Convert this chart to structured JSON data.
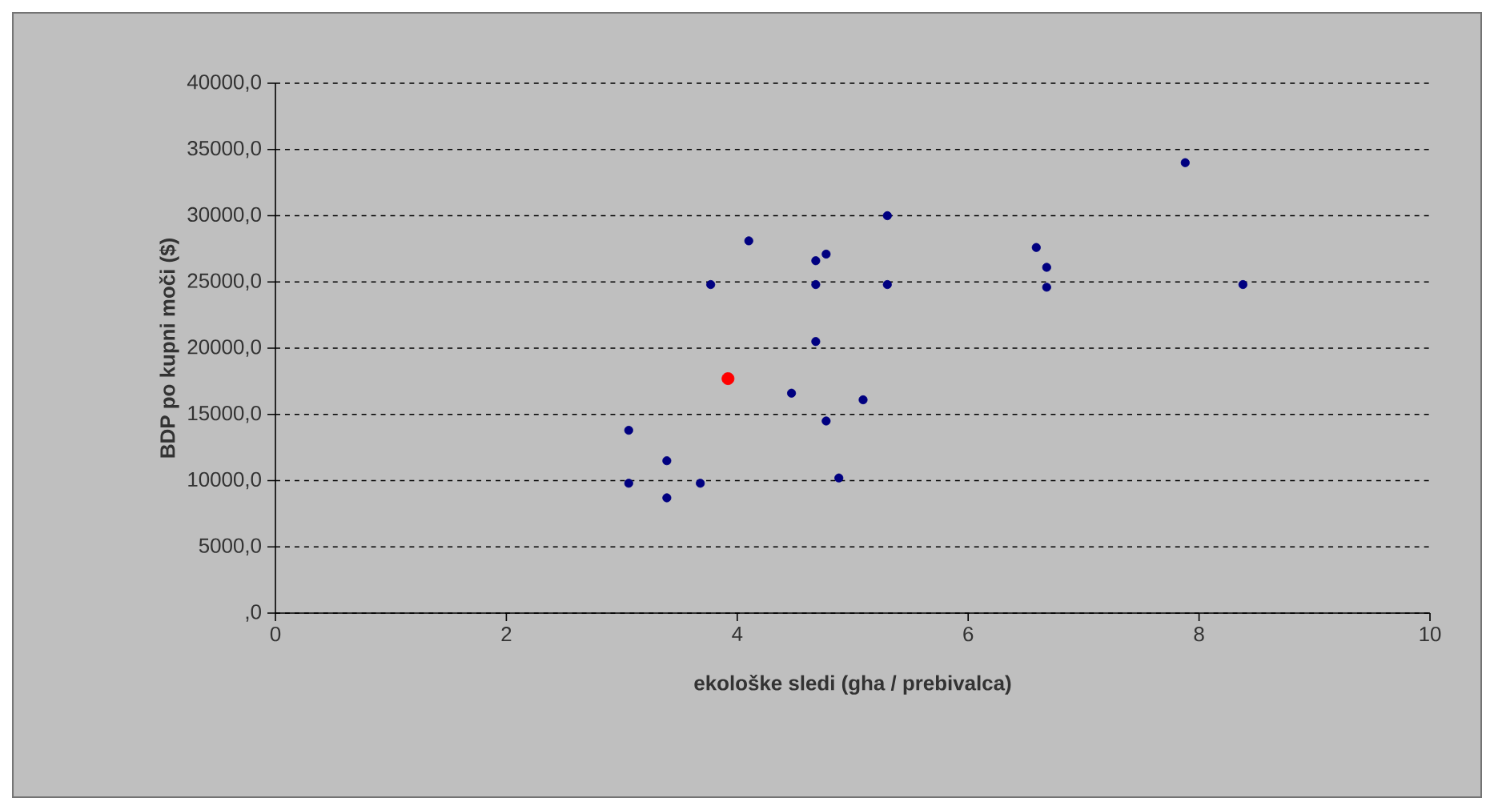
{
  "chart_data": {
    "type": "scatter",
    "xlabel": "ekološke sledi (gha / prebivalca)",
    "ylabel": "BDP po kupni moči ($)",
    "xlim": [
      0,
      10
    ],
    "xticks": [
      0,
      2,
      4,
      6,
      8,
      10
    ],
    "ylim": [
      0,
      40000
    ],
    "yticks": [
      {
        "value": 0,
        "label": ",0"
      },
      {
        "value": 5000,
        "label": "5000,0"
      },
      {
        "value": 10000,
        "label": "10000,0"
      },
      {
        "value": 15000,
        "label": "15000,0"
      },
      {
        "value": 20000,
        "label": "20000,0"
      },
      {
        "value": 25000,
        "label": "25000,0"
      },
      {
        "value": 30000,
        "label": "30000,0"
      },
      {
        "value": 35000,
        "label": "35000,0"
      },
      {
        "value": 40000,
        "label": "40000,0"
      }
    ],
    "grid": "y",
    "marker": "circle",
    "series": [
      {
        "color": "#000080",
        "x": [
          5.3,
          4.1,
          4.77,
          4.68,
          3.77,
          4.68,
          5.3,
          4.68,
          4.47,
          5.09,
          4.77,
          3.06,
          3.39,
          3.06,
          3.68,
          4.88,
          3.39,
          7.88,
          6.59,
          6.68,
          6.68,
          8.38
        ],
        "values": [
          30000,
          28100,
          27100,
          26600,
          24800,
          24800,
          24800,
          20500,
          16600,
          16100,
          14500,
          13800,
          11500,
          9800,
          9800,
          10200,
          8700,
          34000,
          27600,
          26100,
          24600,
          24800
        ]
      },
      {
        "color": "#ff0000",
        "x": [
          3.92
        ],
        "values": [
          17700
        ]
      }
    ]
  }
}
